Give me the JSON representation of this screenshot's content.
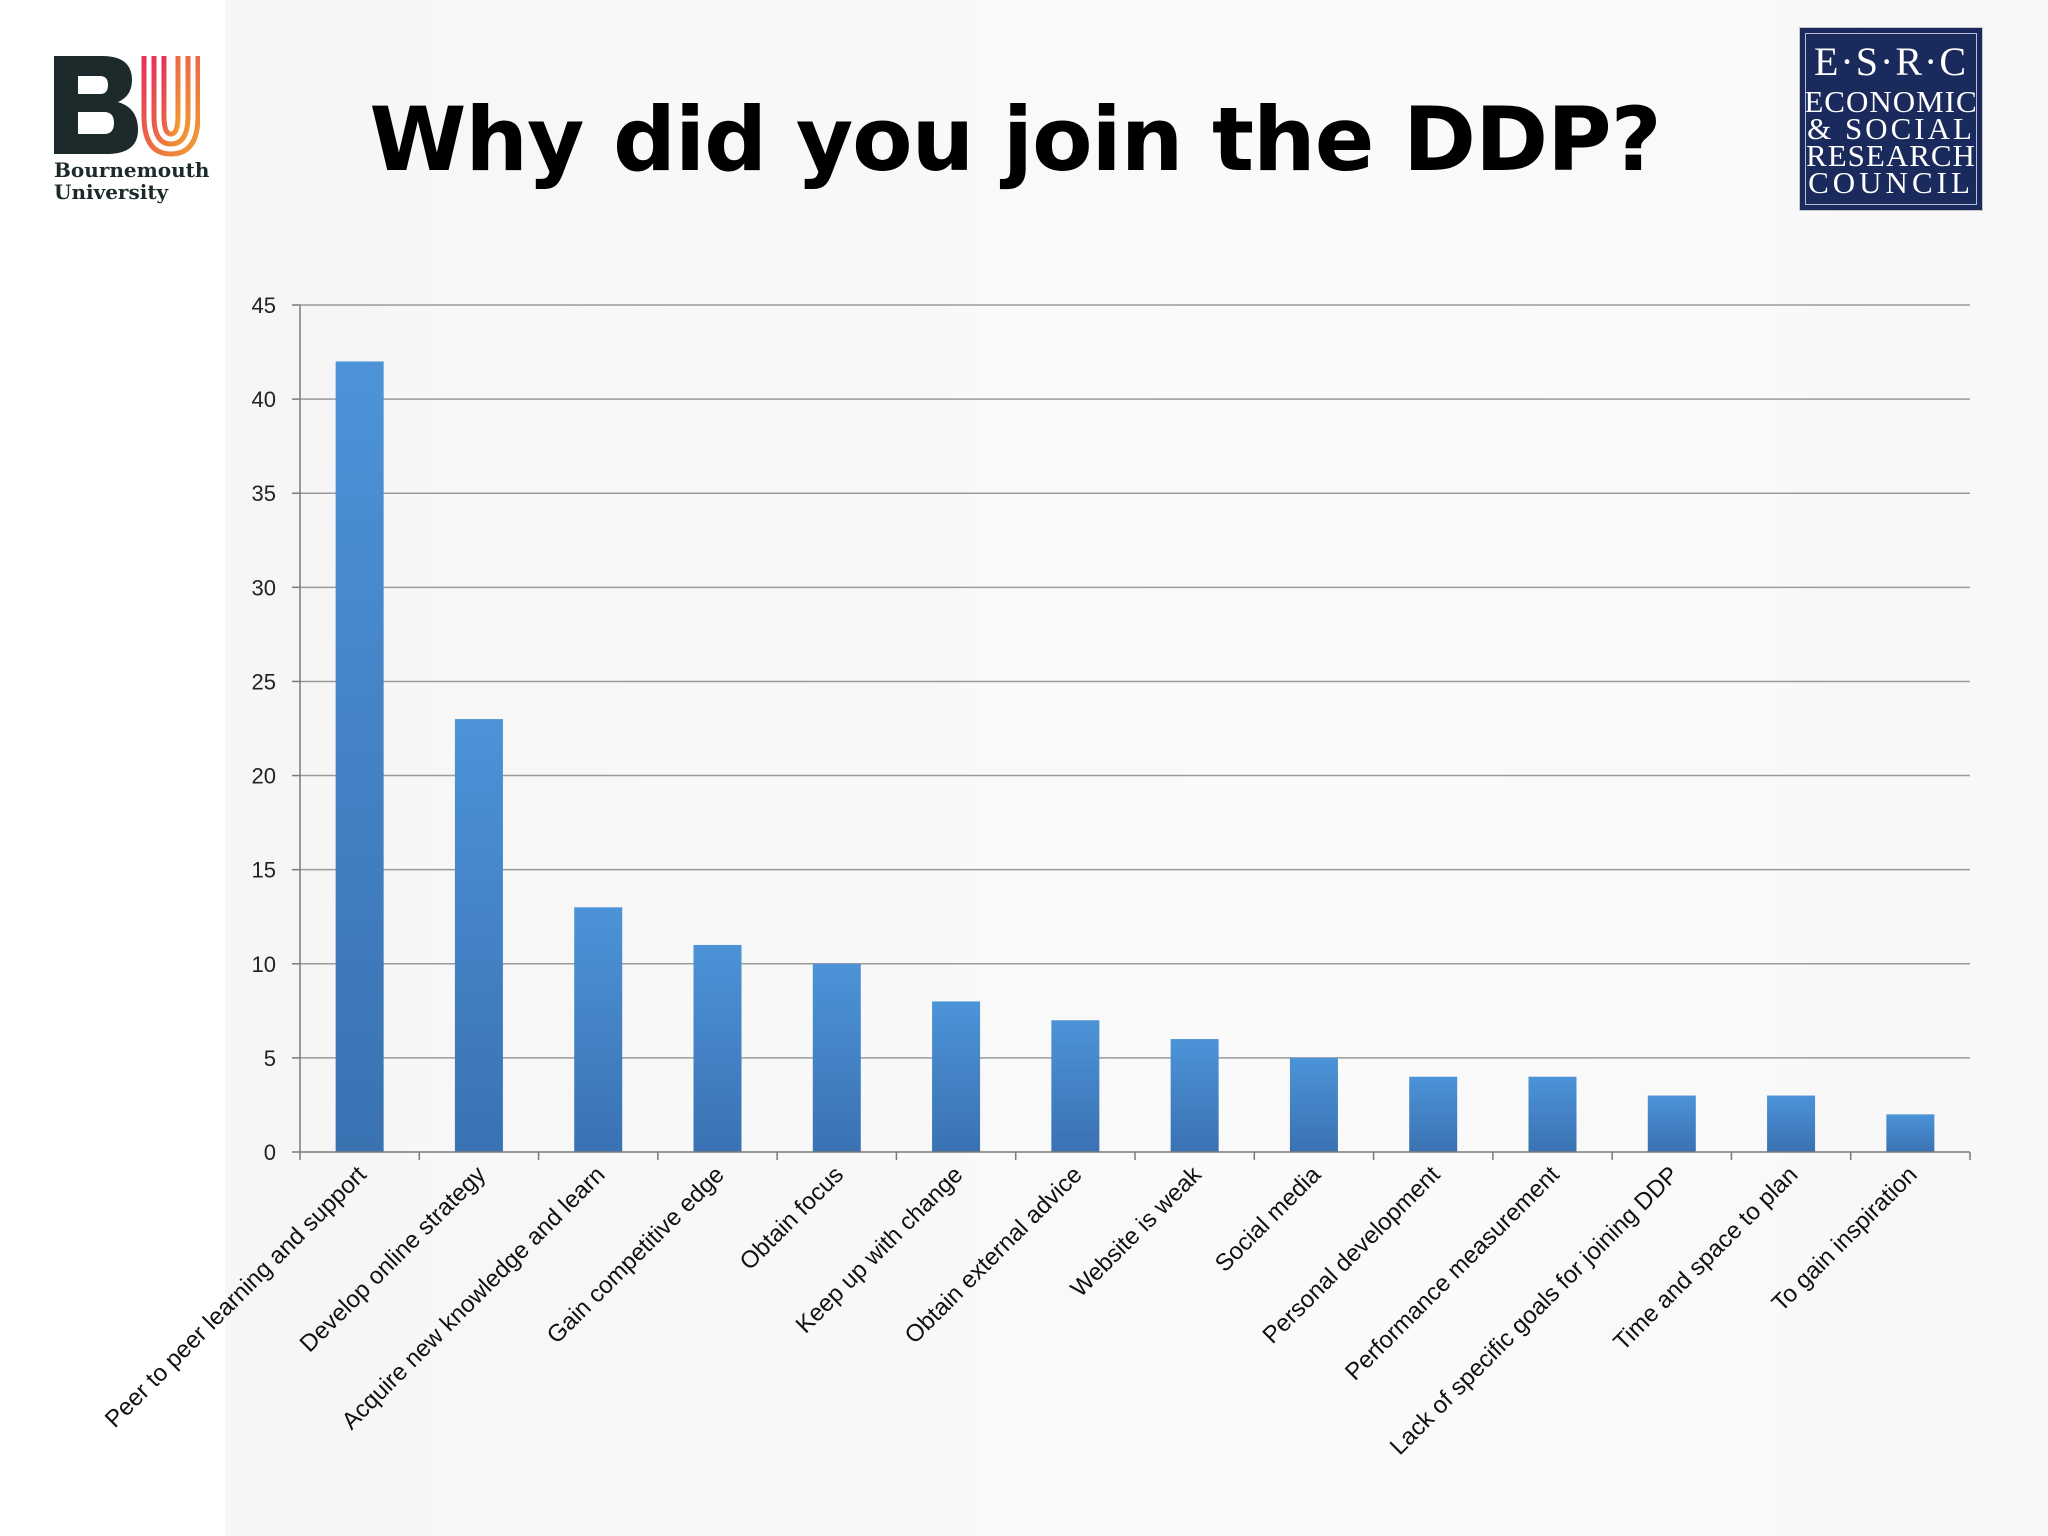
{
  "slide": {
    "title": "Why did you join the DDP?"
  },
  "logos": {
    "bu": {
      "mark": "BU",
      "line1": "Bournemouth",
      "line2": "University",
      "colors": {
        "dark": "#1d2a2c",
        "gradient_start": "#e6325a",
        "gradient_end": "#f0a030"
      }
    },
    "esrc": {
      "lines": [
        "E·S·R·C",
        "ECONOMIC",
        "& SOCIAL",
        "RESEARCH",
        "COUNCIL"
      ],
      "colors": {
        "background": "#1b2a5c",
        "text": "#ffffff"
      }
    }
  },
  "chart_data": {
    "type": "bar",
    "title": "",
    "xlabel": "",
    "ylabel": "",
    "ylim": [
      0,
      45
    ],
    "yticks": [
      0,
      5,
      10,
      15,
      20,
      25,
      30,
      35,
      40,
      45
    ],
    "grid": true,
    "legend": "none",
    "bar_color": "#4a8fd4",
    "bar_color_dark": "#3a73b4",
    "categories": [
      "Peer to peer learning and support",
      "Develop online strategy",
      "Acquire new knowledge and learn",
      "Gain competitive edge",
      "Obtain focus",
      "Keep up with change",
      "Obtain external advice",
      "Website is weak",
      "Social media",
      "Personal development",
      "Performance measurement",
      "Lack of specific goals for joining DDP",
      "Time and space to plan",
      "To gain inspiration"
    ],
    "values": [
      42,
      23,
      13,
      11,
      10,
      8,
      7,
      6,
      5,
      4,
      4,
      3,
      3,
      2
    ]
  }
}
